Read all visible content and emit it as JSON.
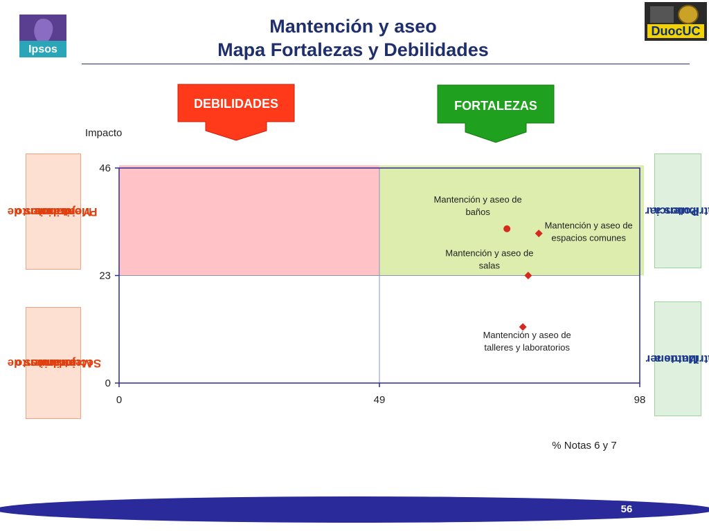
{
  "header": {
    "title_line1": "Mantención y aseo",
    "title_line2": "Mapa Fortalezas y Debilidades",
    "ipsos_logo": "Ipsos",
    "duoc_logo": "DuocUC"
  },
  "labels": {
    "debilidades": "DEBILIDADES",
    "fortalezas": "FORTALEZAS",
    "left_top_lines": [
      "atributos de",
      "Mejoramiento",
      "Prioritarios"
    ],
    "left_bottom_lines": [
      "atributos de",
      "Mejoramiento",
      "Secundarios"
    ],
    "right_top_lines": [
      "atributos a",
      "Potenciar"
    ],
    "right_bottom_lines": [
      "atributos a",
      "Mantener"
    ]
  },
  "colors": {
    "title": "#1f2f6b",
    "debilidades_arrow": "#ff3a1a",
    "fortalezas_arrow": "#1fa01f",
    "weak_quadrant": "#ffc3c7",
    "strong_quadrant": "#dcedad",
    "marker": "#d52b1e",
    "axis": "#2b2b8f",
    "footer_bar": "#2a2a9a"
  },
  "chart_data": {
    "type": "scatter",
    "ylabel": "Impacto",
    "xlabel": "% Notas 6 y 7",
    "xlim": [
      0,
      98
    ],
    "ylim": [
      0,
      46
    ],
    "xticks": [
      "0",
      "49",
      "98"
    ],
    "yticks": [
      "0",
      "23",
      "46"
    ],
    "x_split": 49,
    "y_split": 23,
    "points": [
      {
        "label_lines": [
          "Mantención y aseo de",
          "baños"
        ],
        "x": 73,
        "y": 33,
        "marker": "circle"
      },
      {
        "label_lines": [
          "Mantención y aseo de",
          "espacios comunes"
        ],
        "x": 79,
        "y": 32,
        "marker": "diamond"
      },
      {
        "label_lines": [
          "Mantención y aseo de",
          "salas"
        ],
        "x": 77,
        "y": 23,
        "marker": "diamond"
      },
      {
        "label_lines": [
          "Mantención y aseo de",
          "talleres y laboratorios"
        ],
        "x": 76,
        "y": 12,
        "marker": "diamond"
      }
    ]
  },
  "footer": {
    "page_number": "56"
  }
}
